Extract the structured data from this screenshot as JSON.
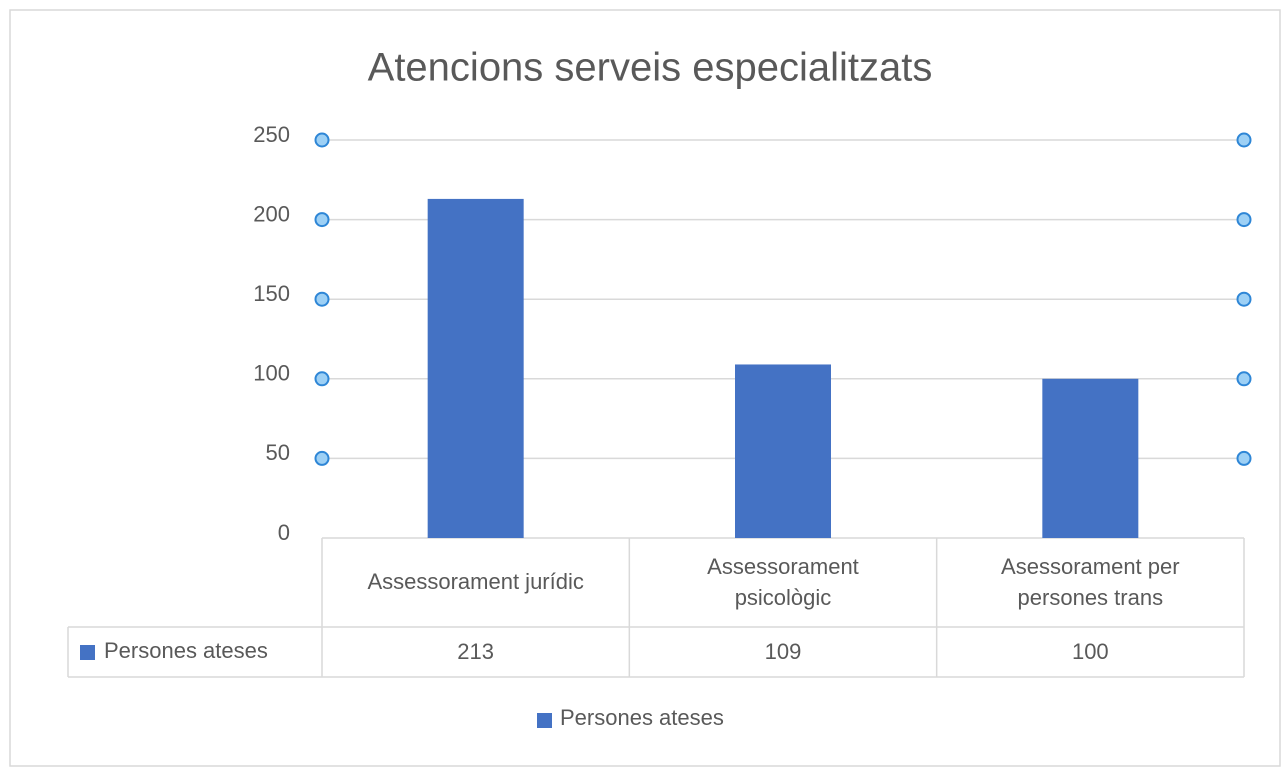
{
  "chart_data": {
    "type": "bar",
    "title": "Atencions serveis especialitzats",
    "categories": [
      "Assessorament jurídic",
      "Assessorament psicològic",
      "Asessorament per persones trans"
    ],
    "series": [
      {
        "name": "Persones ateses",
        "color": "#4472c4",
        "values": [
          213,
          109,
          100
        ]
      }
    ],
    "ylim": [
      0,
      250
    ],
    "yticks": [
      0,
      50,
      100,
      150,
      200,
      250
    ],
    "grid": true,
    "data_table": true,
    "legend": "bottom"
  }
}
